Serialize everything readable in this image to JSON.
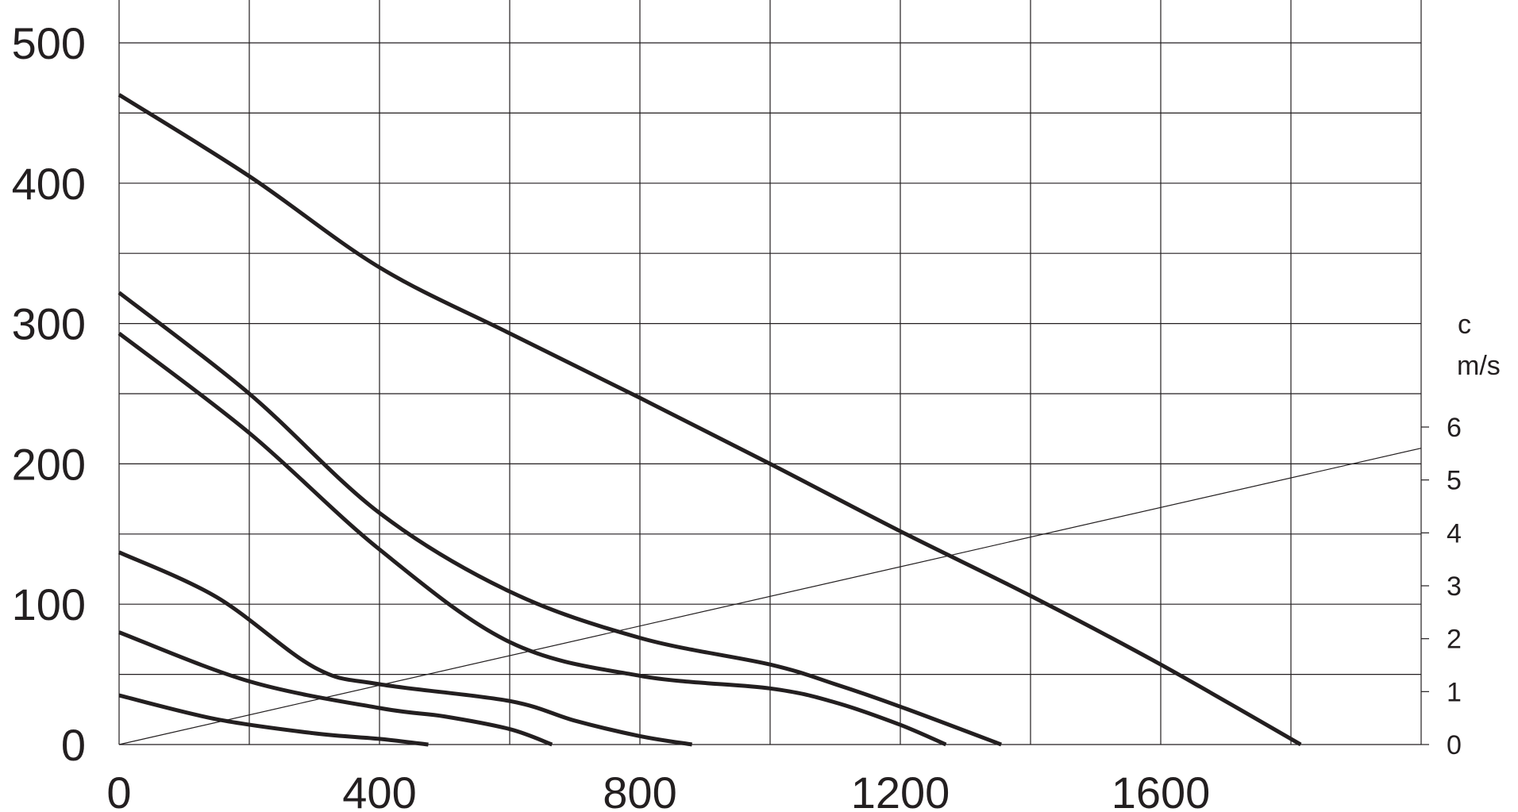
{
  "chart_data": {
    "type": "line",
    "title": "",
    "xlabel": "",
    "ylabel": "",
    "xlim": [
      0,
      2000
    ],
    "ylim": [
      0,
      520
    ],
    "x_ticks": [
      0,
      400,
      800,
      1200,
      1600
    ],
    "x_tick_labels": [
      "0",
      "400",
      "800",
      "1200",
      "1600"
    ],
    "y_ticks": [
      0,
      100,
      200,
      300,
      400,
      500
    ],
    "y_tick_labels": [
      "0",
      "100",
      "200",
      "300",
      "400",
      "500"
    ],
    "x_grid": [
      0,
      200,
      400,
      600,
      800,
      1000,
      1200,
      1400,
      1600,
      1800,
      2000
    ],
    "y_grid": [
      0,
      50,
      100,
      150,
      200,
      250,
      300,
      350,
      400,
      450,
      500
    ],
    "grid": true,
    "right_axis": {
      "unit_line1": "c",
      "unit_line2": "m/s",
      "ylim": [
        0,
        6
      ],
      "ticks": [
        0,
        1,
        2,
        3,
        4,
        5,
        6
      ],
      "tick_labels": [
        "0",
        "1",
        "2",
        "3",
        "4",
        "5",
        "6"
      ]
    },
    "series": [
      {
        "x": [
          0,
          200,
          400,
          600,
          800,
          1000,
          1200,
          1400,
          1600,
          1815
        ],
        "y": [
          463,
          405,
          340,
          293,
          247,
          200,
          152,
          106,
          57,
          0
        ]
      },
      {
        "x": [
          0,
          200,
          400,
          600,
          800,
          1000,
          1100,
          1200,
          1355
        ],
        "y": [
          322,
          250,
          165,
          109,
          76,
          57,
          43,
          27,
          0
        ]
      },
      {
        "x": [
          0,
          200,
          400,
          600,
          800,
          1000,
          1100,
          1200,
          1270
        ],
        "y": [
          293,
          222,
          139,
          73,
          49,
          40,
          30,
          14,
          0
        ]
      },
      {
        "x": [
          0,
          150,
          300,
          400,
          600,
          700,
          800,
          880
        ],
        "y": [
          137,
          105,
          55,
          43,
          31,
          17,
          6,
          0
        ]
      },
      {
        "x": [
          0,
          200,
          400,
          500,
          600,
          665
        ],
        "y": [
          80,
          45,
          26,
          20,
          11,
          0
        ]
      },
      {
        "x": [
          0,
          150,
          300,
          400,
          475
        ],
        "y": [
          35,
          18,
          8,
          4,
          0
        ]
      }
    ],
    "velocity_line": {
      "x": [
        0,
        2000
      ],
      "c": [
        0,
        5.6
      ]
    },
    "line_color": "#231f20",
    "grid_color": "#231f20",
    "background": "#ffffff"
  }
}
